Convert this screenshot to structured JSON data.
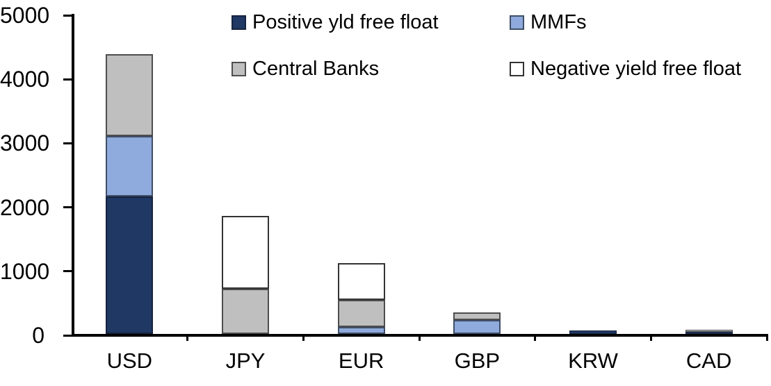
{
  "chart_data": {
    "type": "bar",
    "stacked": true,
    "title": "",
    "xlabel": "",
    "ylabel": "",
    "categories": [
      "USD",
      "JPY",
      "EUR",
      "GBP",
      "KRW",
      "CAD"
    ],
    "series": [
      {
        "name": "Positive yld free float",
        "color": "#1F3864",
        "border": "#16233E",
        "values": [
          2150,
          0,
          0,
          0,
          50,
          35
        ]
      },
      {
        "name": "MMFs",
        "color": "#8FAADC",
        "border": "#3F4E66",
        "values": [
          945,
          0,
          110,
          215,
          0,
          0
        ]
      },
      {
        "name": "Central Banks",
        "color": "#BFBFBF",
        "border": "#4D4D4D",
        "values": [
          1280,
          700,
          420,
          120,
          0,
          30
        ]
      },
      {
        "name": "Negative yield free float",
        "color": "#FFFFFF",
        "border": "#333333",
        "values": [
          0,
          1145,
          580,
          0,
          0,
          0
        ]
      }
    ],
    "ylim": [
      0,
      5000
    ],
    "yticks": [
      0,
      1000,
      2000,
      3000,
      4000,
      5000
    ],
    "legend_position": "top",
    "legend_order": [
      "Positive yld free float",
      "MMFs",
      "Central Banks",
      "Negative yield free float"
    ],
    "grid": false,
    "axis_color": "#000000",
    "background": "#FFFFFF"
  }
}
